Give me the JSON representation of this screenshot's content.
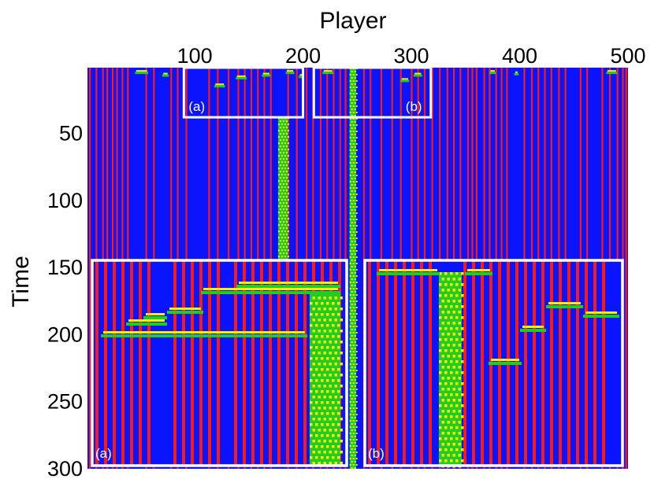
{
  "chart_data": {
    "type": "heatmap",
    "title": "",
    "xlabel": "Player",
    "ylabel": "Time",
    "x_axis_position": "top",
    "xlim": [
      1,
      500
    ],
    "ylim": [
      1,
      300
    ],
    "x_ticks": [
      100,
      200,
      300,
      400,
      500
    ],
    "y_ticks": [
      50,
      100,
      150,
      200,
      250,
      300
    ],
    "grid": false,
    "background_state_color": "#0a14ff",
    "state_colors": {
      "blue": "#0a14ff",
      "red": "#ff1a10",
      "green": "#22cc22",
      "yellow": "#f2f200"
    },
    "red_columns": [
      3,
      9,
      15,
      19,
      24,
      28,
      33,
      38,
      55,
      62,
      78,
      84,
      92,
      113,
      121,
      131,
      140,
      146,
      152,
      158,
      164,
      170,
      186,
      194,
      203,
      209,
      216,
      222,
      228,
      234,
      239,
      256,
      262,
      272,
      282,
      290,
      300,
      306,
      312,
      319,
      326,
      333,
      339,
      345,
      352,
      356,
      360,
      367,
      372,
      378,
      383,
      388,
      404,
      411,
      417,
      423,
      429,
      436,
      442,
      456,
      462,
      476,
      483,
      490,
      495,
      498
    ],
    "mixed_columns": [
      {
        "player_start": 177,
        "player_end": 186,
        "time_start": 38,
        "time_end": 150
      },
      {
        "player_start": 243,
        "player_end": 249,
        "time_start": 1,
        "time_end": 300
      }
    ],
    "insets": [
      {
        "label": "(a)",
        "source_player_range": [
          90,
          200
        ],
        "source_time_range": [
          1,
          38
        ]
      },
      {
        "label": "(b)",
        "source_player_range": [
          210,
          318
        ],
        "source_time_range": [
          1,
          38
        ]
      }
    ]
  }
}
